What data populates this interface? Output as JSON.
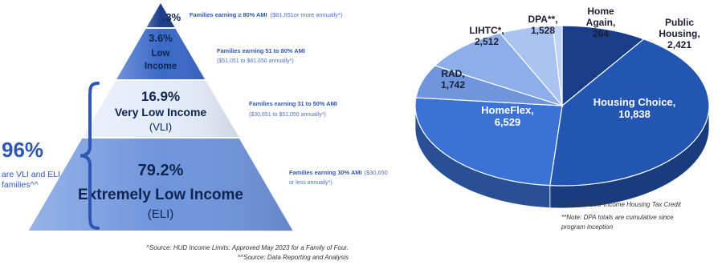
{
  "chart_data": [
    {
      "type": "pyramid",
      "series_unit": "%",
      "tiers": [
        {
          "value_label": ".3%",
          "name_lines": [],
          "annotation": "Families earning ≥ 80% AMI",
          "annotation_sub": "($81,651or more annually*)",
          "fill": "#1a3d8a"
        },
        {
          "value_label": "3.6%",
          "name_lines": [
            "Low",
            "Income"
          ],
          "annotation": "Families earning 51 to 80% AMI",
          "annotation_sub_lines": [
            "($51,051 to $81,650 annually*)"
          ],
          "fill": "#3a69c8"
        },
        {
          "value_label": "16.9%",
          "name_lines": [
            "Very Low Income",
            "(VLI)"
          ],
          "annotation": "Families earning 31 to 50% AMI",
          "annotation_sub_lines": [
            "($30,651 to $51,050 annually*)"
          ],
          "fill": "#e4ebfa"
        },
        {
          "value_label": "79.2%",
          "name_lines": [
            "Extremely Low Income",
            "(ELI)"
          ],
          "annotation": "Families earning 30% AMI",
          "annotation_tail": "($30,650",
          "annotation_sub_lines": [
            "or less annually*)"
          ],
          "fill": "#6f95dd"
        }
      ],
      "callout": {
        "value": "96%",
        "lines": [
          "are VLI and ELI",
          "families^^"
        ]
      },
      "sources": [
        "^Source: HUD Income Limits: Approved May 2023 for a Family of Four.",
        "^^Source: Data Reporting and Analysis"
      ]
    },
    {
      "type": "pie",
      "slices": [
        {
          "name": "Housing Choice",
          "value": 10838,
          "label": [
            "Housing Choice,",
            "10,838"
          ],
          "color": "#2256b2"
        },
        {
          "name": "HomeFlex",
          "value": 6529,
          "label": [
            "HomeFlex,",
            "6,529"
          ],
          "color": "#3a72d6"
        },
        {
          "name": "RAD",
          "value": 1742,
          "label": [
            "RAD,",
            "1,742"
          ],
          "color": "#6f95dd"
        },
        {
          "name": "LIHTC*",
          "value": 2512,
          "label": [
            "LIHTC*,",
            "2,512"
          ],
          "color": "#8eaeea"
        },
        {
          "name": "DPA**",
          "value": 1528,
          "label": [
            "DPA**,",
            "1,528"
          ],
          "color": "#aac3f1"
        },
        {
          "name": "Home Again",
          "value": 264,
          "label": [
            "Home",
            "Again,",
            "264"
          ],
          "color": "#c2d4f5"
        },
        {
          "name": "Public Housing",
          "value": 2421,
          "label": [
            "Public",
            "Housing,",
            "2,421"
          ],
          "color": "#1a3d8a"
        }
      ],
      "notes": [
        "*LIHTC = Low-Income Housing Tax Credit",
        "**Note: DPA totals are cumulative since",
        "program inception"
      ]
    }
  ]
}
